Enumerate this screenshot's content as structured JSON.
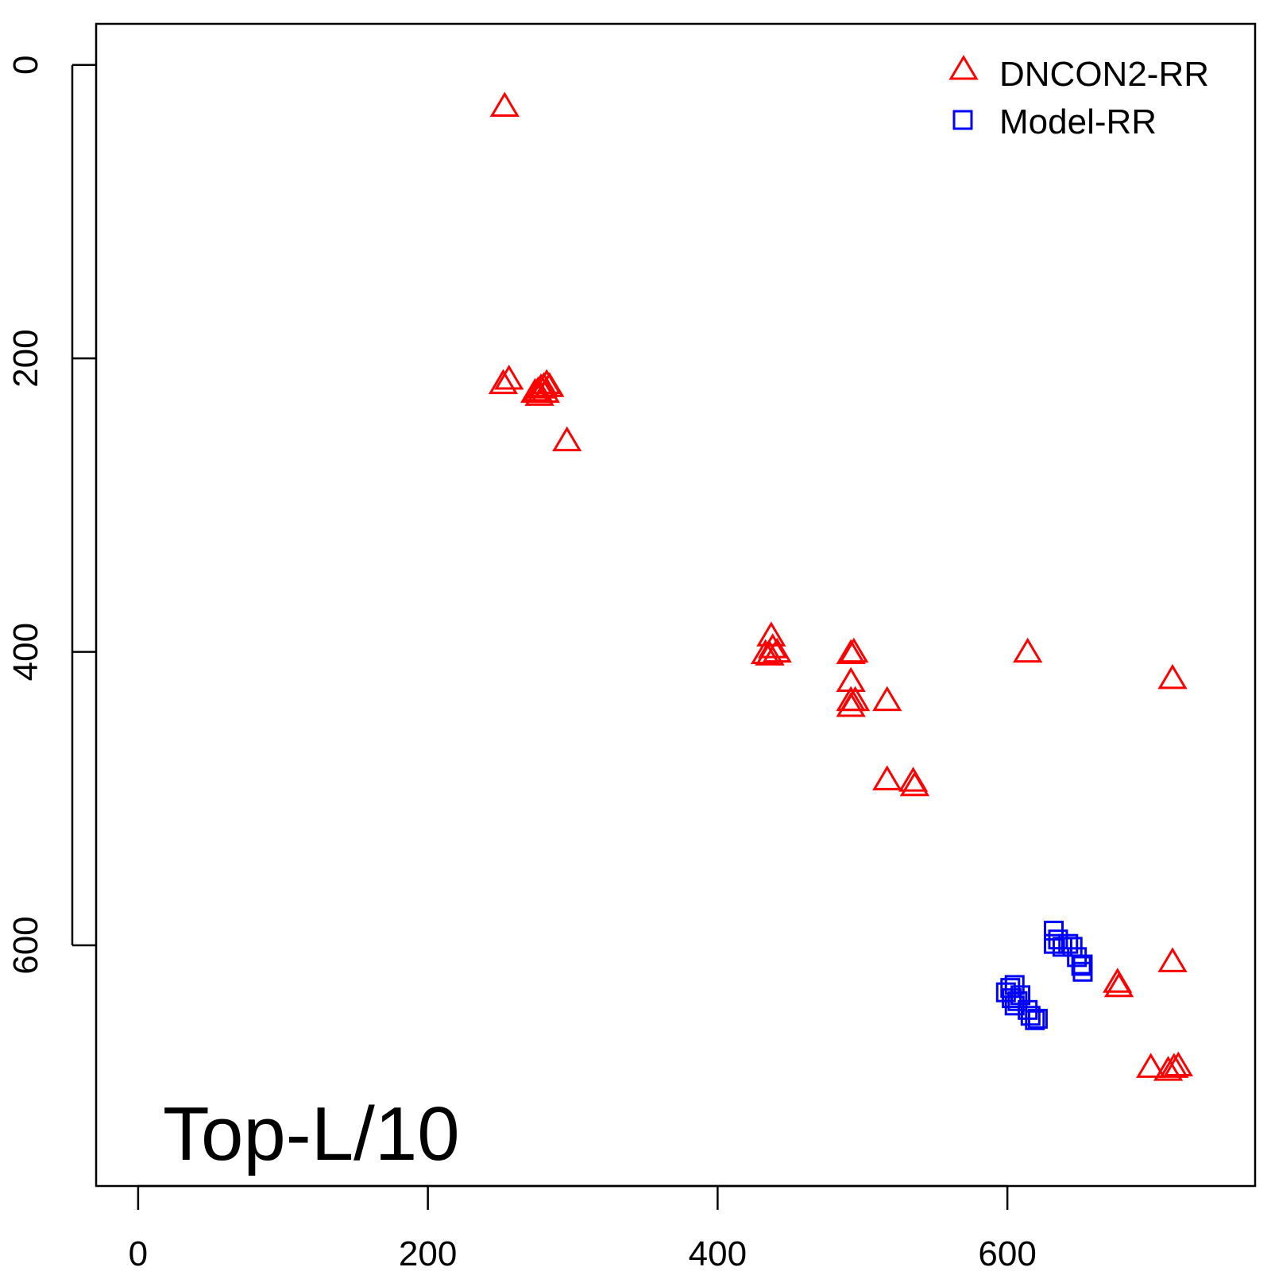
{
  "chart_data": {
    "type": "scatter",
    "annotation": "Top-L/10",
    "xlim": [
      -29,
      771
    ],
    "ylim": [
      -28,
      764
    ],
    "y_inverted": true,
    "x_ticks": [
      "0",
      "200",
      "400",
      "600"
    ],
    "y_ticks": [
      "0",
      "200",
      "400",
      "600"
    ],
    "grid": false,
    "legend_position": "top-right",
    "series": [
      {
        "name": "DNCON2-RR",
        "marker": "triangle-open",
        "color": "#ff0000",
        "points": [
          [
            253,
            28
          ],
          [
            252,
            217
          ],
          [
            256,
            214
          ],
          [
            274,
            223
          ],
          [
            276,
            222
          ],
          [
            278,
            220
          ],
          [
            280,
            219
          ],
          [
            282,
            217
          ],
          [
            284,
            219
          ],
          [
            277,
            225
          ],
          [
            281,
            223
          ],
          [
            296,
            256
          ],
          [
            437,
            389
          ],
          [
            433,
            401
          ],
          [
            438,
            397
          ],
          [
            441,
            400
          ],
          [
            436,
            402
          ],
          [
            492,
            401
          ],
          [
            494,
            400
          ],
          [
            492,
            420
          ],
          [
            492,
            433
          ],
          [
            492,
            437
          ],
          [
            495,
            433
          ],
          [
            517,
            433
          ],
          [
            517,
            487
          ],
          [
            535,
            488
          ],
          [
            536,
            491
          ],
          [
            614,
            400
          ],
          [
            714,
            418
          ],
          [
            714,
            611
          ],
          [
            676,
            625
          ],
          [
            677,
            628
          ],
          [
            699,
            683
          ],
          [
            711,
            685
          ],
          [
            715,
            683
          ],
          [
            718,
            682
          ]
        ]
      },
      {
        "name": "Model-RR",
        "marker": "square-open",
        "color": "#0000ff",
        "points": [
          [
            632,
            590
          ],
          [
            632,
            599
          ],
          [
            635,
            596
          ],
          [
            638,
            601
          ],
          [
            642,
            599
          ],
          [
            645,
            601
          ],
          [
            648,
            608
          ],
          [
            651,
            614
          ],
          [
            652,
            618
          ],
          [
            652,
            613
          ],
          [
            599,
            632
          ],
          [
            602,
            629
          ],
          [
            605,
            627
          ],
          [
            603,
            636
          ],
          [
            605,
            641
          ],
          [
            607,
            638
          ],
          [
            609,
            634
          ],
          [
            614,
            644
          ],
          [
            616,
            648
          ],
          [
            619,
            651
          ],
          [
            621,
            650
          ]
        ]
      }
    ]
  }
}
